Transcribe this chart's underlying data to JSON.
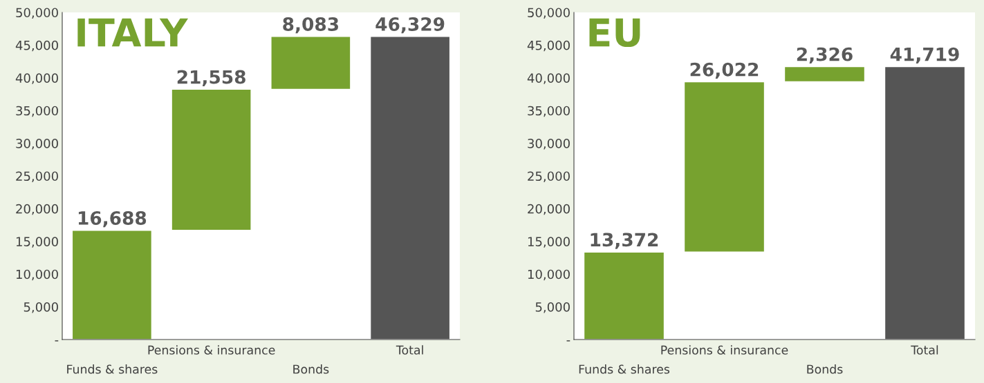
{
  "chart_data": [
    {
      "type": "bar",
      "title": "ITALY",
      "categories": [
        "Funds & shares",
        "Pensions & insurance",
        "Bonds",
        "Total"
      ],
      "values": [
        16688,
        21558,
        8083,
        46329
      ],
      "base": [
        0,
        16688,
        38246,
        0
      ],
      "colors": [
        "#77a22f",
        "#77a22f",
        "#77a22f",
        "#555555"
      ],
      "value_labels": [
        "16,688",
        "21,558",
        "8,083",
        "46,329"
      ],
      "ylim": [
        0,
        50000
      ],
      "yticks": [
        {
          "value": 0,
          "label": "-"
        },
        {
          "value": 5000,
          "label": "5,000"
        },
        {
          "value": 10000,
          "label": "10,000"
        },
        {
          "value": 15000,
          "label": "15,000"
        },
        {
          "value": 20000,
          "label": "20,000"
        },
        {
          "value": 25000,
          "label": "25,000"
        },
        {
          "value": 30000,
          "label": "30,000"
        },
        {
          "value": 35000,
          "label": "35,000"
        },
        {
          "value": 40000,
          "label": "40,000"
        },
        {
          "value": 45000,
          "label": "45,000"
        },
        {
          "value": 50000,
          "label": "50,000"
        }
      ],
      "grid": false,
      "legend": false
    },
    {
      "type": "bar",
      "title": "EU",
      "categories": [
        "Funds & shares",
        "Pensions & insurance",
        "Bonds",
        "Total"
      ],
      "values": [
        13372,
        26022,
        2326,
        41719
      ],
      "base": [
        0,
        13372,
        39394,
        0
      ],
      "colors": [
        "#77a22f",
        "#77a22f",
        "#77a22f",
        "#555555"
      ],
      "value_labels": [
        "13,372",
        "26,022",
        "2,326",
        "41,719"
      ],
      "ylim": [
        0,
        50000
      ],
      "yticks": [
        {
          "value": 0,
          "label": "-"
        },
        {
          "value": 5000,
          "label": "5,000"
        },
        {
          "value": 10000,
          "label": "10,000"
        },
        {
          "value": 15000,
          "label": "15,000"
        },
        {
          "value": 20000,
          "label": "20,000"
        },
        {
          "value": 25000,
          "label": "25,000"
        },
        {
          "value": 30000,
          "label": "30,000"
        },
        {
          "value": 35000,
          "label": "35,000"
        },
        {
          "value": 40000,
          "label": "40,000"
        },
        {
          "value": 45000,
          "label": "45,000"
        },
        {
          "value": 50000,
          "label": "50,000"
        }
      ],
      "grid": false,
      "legend": false
    }
  ]
}
